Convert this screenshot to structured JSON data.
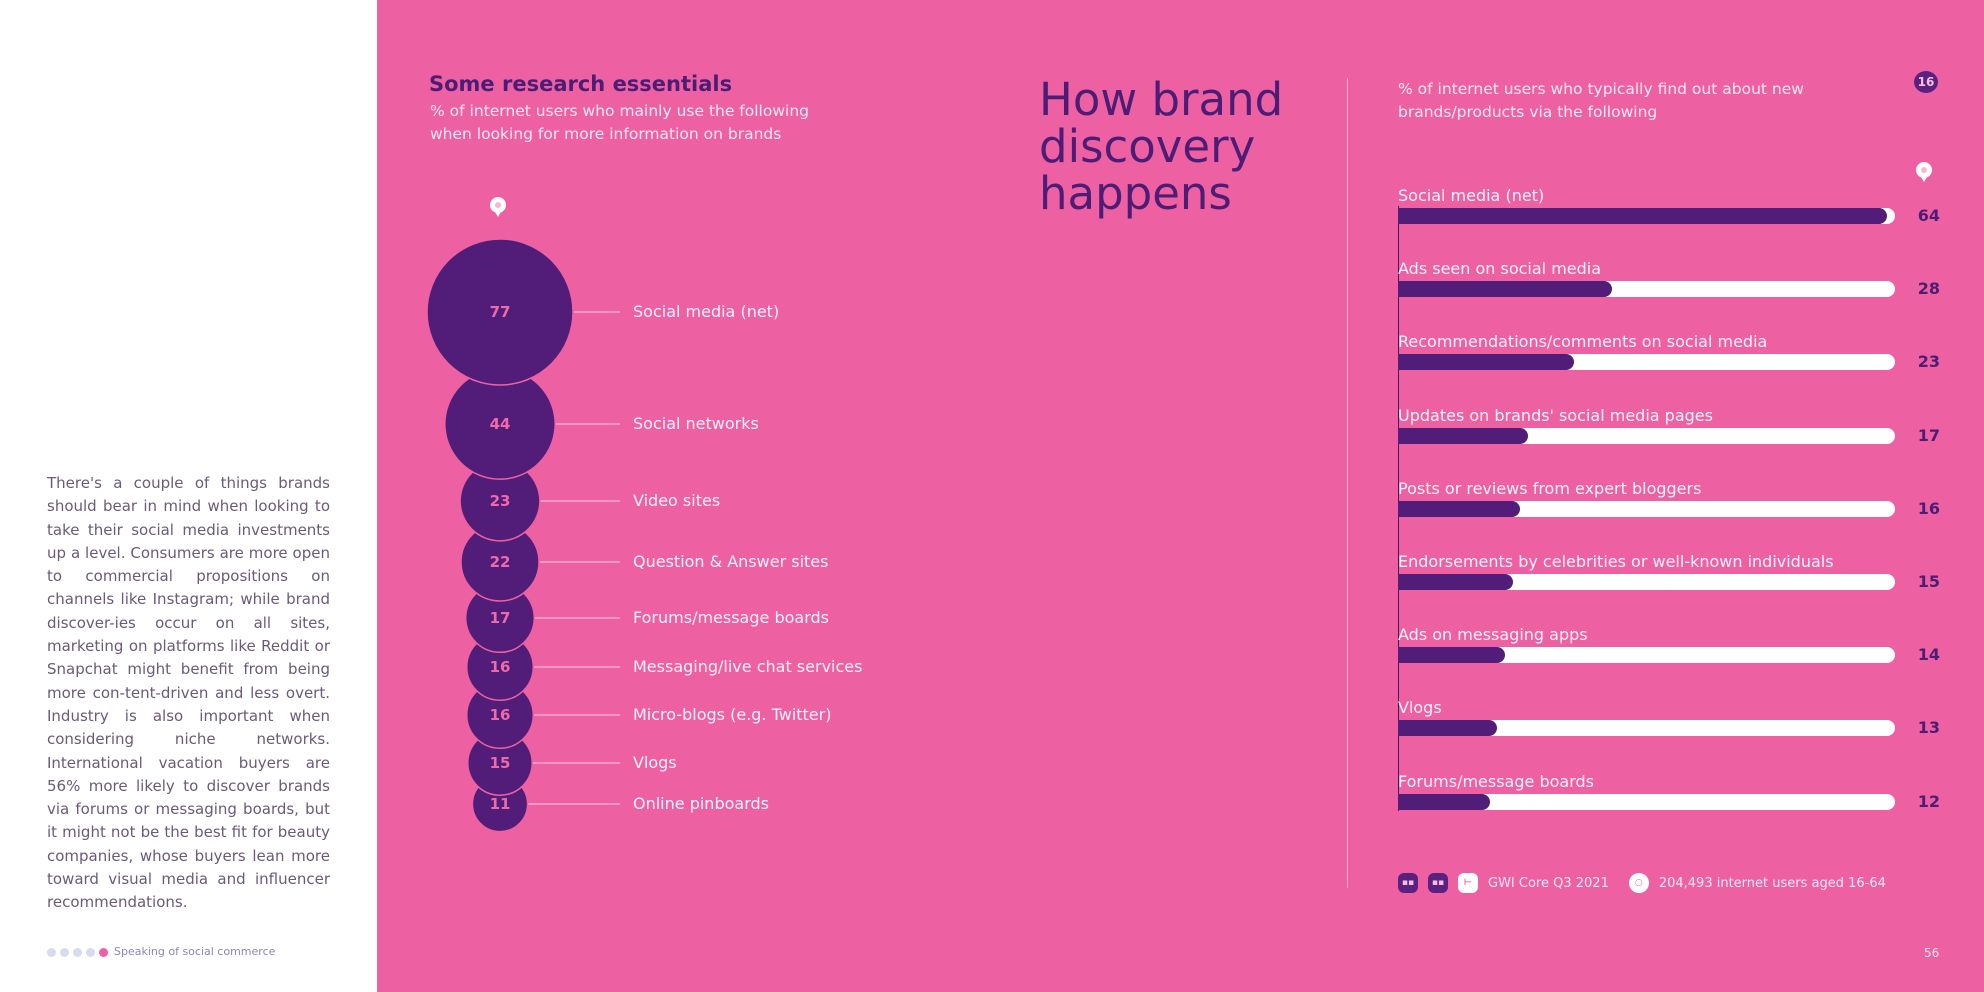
{
  "body_text": "There's a couple of things brands should bear in mind when looking to take their social media investments up a level. Consumers are more open to commercial propositions on channels like Instagram; while brand discover-ies occur on all sites, marketing on platforms like Reddit or Snapchat might benefit from being more con-tent-driven and less overt. Industry is also important when considering niche networks. International vacation buyers are 56% more likely to discover brands via forums or messaging boards, but it might not be the best fit for beauty companies, whose buyers lean more toward visual media and influencer recommendations.",
  "footer": {
    "label": "Speaking of social commerce",
    "page_number": "56"
  },
  "page_badge": "16",
  "big_title": "How brand discovery happens",
  "colors": {
    "pink": "#ed61a3",
    "purple": "#521d78",
    "white": "#ffffff"
  },
  "source": {
    "text": "GWI Core Q3 2021",
    "base": "204,493 internet users aged 16-64"
  },
  "chart_data": [
    {
      "type": "bubble",
      "title": "Some research essentials",
      "subtitle": "% of internet users who mainly use the following when looking for more information on brands",
      "categories": [
        "Social media (net)",
        "Social networks",
        "Video sites",
        "Question & Answer sites",
        "Forums/message boards",
        "Messaging/live chat services",
        "Micro-blogs (e.g. Twitter)",
        "Vlogs",
        "Online pinboards"
      ],
      "values": [
        77,
        44,
        23,
        22,
        17,
        16,
        16,
        15,
        11
      ]
    },
    {
      "type": "bar",
      "subtitle": "% of internet users who typically find out about new brands/products via the following",
      "categories": [
        "Social media (net)",
        "Ads seen on social media",
        "Recommendations/comments on social media",
        "Updates on brands' social media pages",
        "Posts or reviews from expert bloggers",
        "Endorsements by celebrities or well-known individuals",
        "Ads on messaging apps",
        "Vlogs",
        "Forums/message boards"
      ],
      "values": [
        64,
        28,
        23,
        17,
        16,
        15,
        14,
        13,
        12
      ],
      "xlim": [
        0,
        65
      ]
    }
  ]
}
